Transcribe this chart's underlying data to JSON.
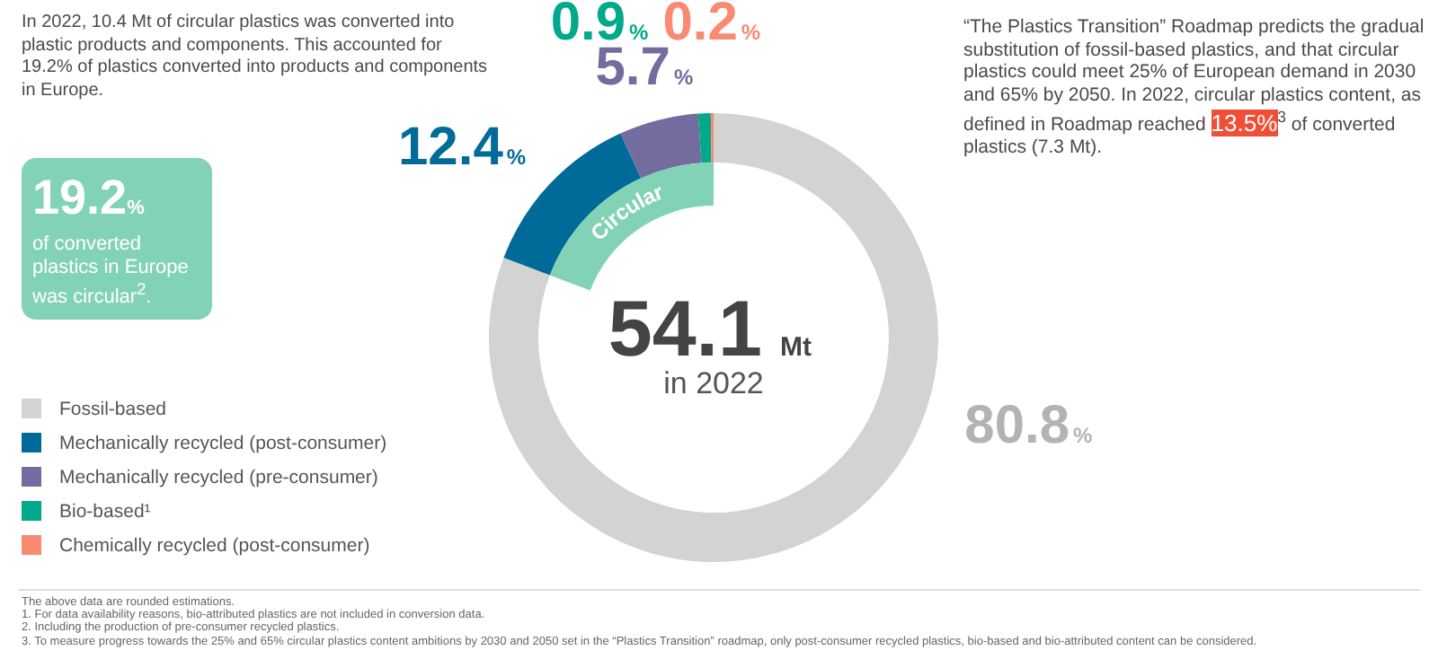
{
  "chart_data": {
    "type": "donut",
    "categories": [
      "Fossil-based",
      "Mechanically recycled (post-consumer)",
      "Mechanically recycled (pre-consumer)",
      "Bio-based¹",
      "Chemically recycled (post-consumer)"
    ],
    "values": [
      80.8,
      12.4,
      5.7,
      0.9,
      0.2
    ],
    "colors": [
      "#d3d3d1",
      "#006a98",
      "#736c9f",
      "#00a98a",
      "#fa8a72"
    ],
    "value_labels": [
      "80.8%",
      "12.4%",
      "5.7%",
      "0.9%",
      "0.2%"
    ],
    "legend": "left",
    "annotations": [
      "In 2022, 10.4 Mt of circular plastics was converted into plastic products and components. This accounted for 19.2% of plastics converted into products and components in Europe.",
      "19.2%",
      "of converted plastics in Europe was circular$^{2}$.",
      "“The Plastics Transition” Roadmap predicts the gradual substitution of fossil-based plastics, and that circular plastics could meet 25% of European demand in 2030 and 65% by 2050. In 2022, circular plastics content, as defined in Roadmap reached",
      "13.5%",
      "$^{3}$ of converted plastics (7.3 Mt).",
      "54.1 Mt",
      "in 2022",
      "Circular",
      "The above data are rounded estimations.",
      "1.  For data availability reasons, bio-attributed plastics are not included in conversion data.",
      "2.  Including the production of pre-consumer recycled plastics.",
      "3.  To measure progress towards the 25% and 65% circular plastics content ambitions by 2030 and 2050 set in the “Plastics Transition” roadmap, only post-consumer recycled plastics, bio-based and bio-attributed content can be considered."
    ]
  }
}
